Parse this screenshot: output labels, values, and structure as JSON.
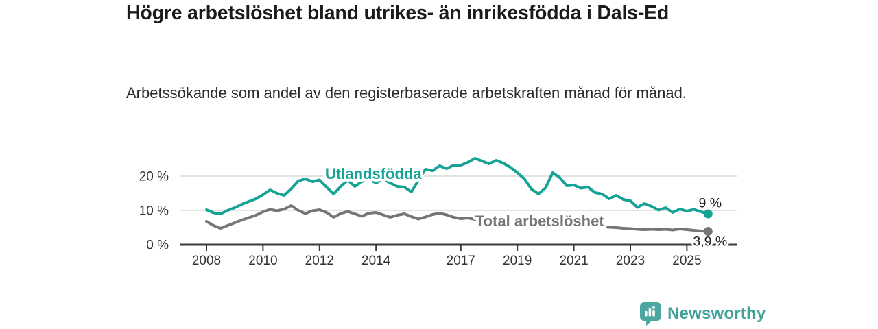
{
  "header": {
    "title": "Högre arbetslöshet bland utrikes- än inrikesfödda i Dals-Ed",
    "subtitle": "Arbetssökande som andel av den registerbaserade arbetskraften månad för månad."
  },
  "branding": {
    "wordmark": "Newsworthy",
    "icon": "newsworthy-bar-chart-bubble-icon",
    "color": "#42a39a"
  },
  "colors": {
    "foreign_born_line": "#16a294",
    "total_line": "#767676",
    "gridline": "#d9d9d9",
    "axis": "#3a3a3a",
    "tick_text": "#333333",
    "end_label_text": "#1d1d1d",
    "background": "#ffffff"
  },
  "chart_data": {
    "type": "line",
    "title": "",
    "xlabel": "",
    "ylabel": "",
    "grid": "horizontal",
    "legend_position": "inline-labels",
    "x_range": [
      2007.9,
      2026.2
    ],
    "ylim": [
      0,
      26
    ],
    "x_ticks": [
      {
        "value": 2008,
        "label": "2008"
      },
      {
        "value": 2010,
        "label": "2010"
      },
      {
        "value": 2012,
        "label": "2012"
      },
      {
        "value": 2014,
        "label": "2014"
      },
      {
        "value": 2017,
        "label": "2017"
      },
      {
        "value": 2019,
        "label": "2019"
      },
      {
        "value": 2021,
        "label": "2021"
      },
      {
        "value": 2023,
        "label": "2023"
      },
      {
        "value": 2025,
        "label": "2025"
      }
    ],
    "y_ticks": [
      {
        "value": 0,
        "label": "0 %"
      },
      {
        "value": 10,
        "label": "10 %"
      },
      {
        "value": 20,
        "label": "20 %"
      }
    ],
    "series": [
      {
        "name": "Utlandsfödda",
        "color": "#16a294",
        "unit": "percent",
        "x_start": 2008.0,
        "x_step": 0.25,
        "values": [
          10.2,
          9.3,
          9.0,
          10.0,
          10.8,
          11.8,
          12.6,
          13.4,
          14.6,
          16.0,
          15.0,
          14.4,
          16.3,
          18.6,
          19.2,
          18.4,
          18.9,
          16.8,
          14.8,
          17.0,
          18.8,
          17.0,
          18.4,
          19.0,
          18.0,
          19.2,
          18.0,
          17.0,
          16.8,
          15.4,
          18.8,
          22.0,
          21.6,
          23.0,
          22.2,
          23.2,
          23.2,
          24.0,
          25.2,
          24.4,
          23.6,
          24.6,
          23.8,
          22.6,
          21.0,
          19.2,
          16.2,
          14.8,
          16.6,
          21.0,
          19.6,
          17.2,
          17.4,
          16.5,
          16.8,
          15.2,
          14.8,
          13.4,
          14.4,
          13.2,
          12.8,
          10.9,
          12.0,
          11.2,
          10.1,
          10.8,
          9.4,
          10.4,
          9.8,
          10.3,
          9.6,
          9.0
        ],
        "end_label": "9 %",
        "end_label_side": "above",
        "name_label_pos": {
          "x": 2012.2,
          "y": 19.2
        }
      },
      {
        "name": "Total arbetslöshet",
        "color": "#767676",
        "unit": "percent",
        "x_start": 2008.0,
        "x_step": 0.25,
        "values": [
          6.8,
          5.6,
          4.8,
          5.6,
          6.4,
          7.2,
          7.9,
          8.6,
          9.6,
          10.3,
          9.9,
          10.4,
          11.4,
          10.0,
          9.1,
          9.9,
          10.2,
          9.4,
          8.0,
          9.1,
          9.7,
          9.0,
          8.3,
          9.2,
          9.4,
          8.7,
          8.0,
          8.6,
          9.0,
          8.2,
          7.5,
          8.1,
          8.8,
          9.2,
          8.7,
          8.0,
          7.6,
          7.8,
          7.4,
          7.1,
          6.9,
          6.6,
          6.4,
          6.6,
          6.4,
          6.1,
          5.9,
          6.1,
          6.6,
          7.0,
          6.8,
          6.5,
          6.1,
          5.8,
          5.6,
          5.4,
          5.3,
          5.1,
          5.0,
          4.8,
          4.7,
          4.5,
          4.4,
          4.5,
          4.4,
          4.5,
          4.3,
          4.6,
          4.4,
          4.2,
          4.0,
          3.9
        ],
        "end_label": "3,9 %",
        "end_label_side": "below",
        "name_label_pos": {
          "x": 2017.51,
          "y": 5.4
        }
      }
    ]
  }
}
